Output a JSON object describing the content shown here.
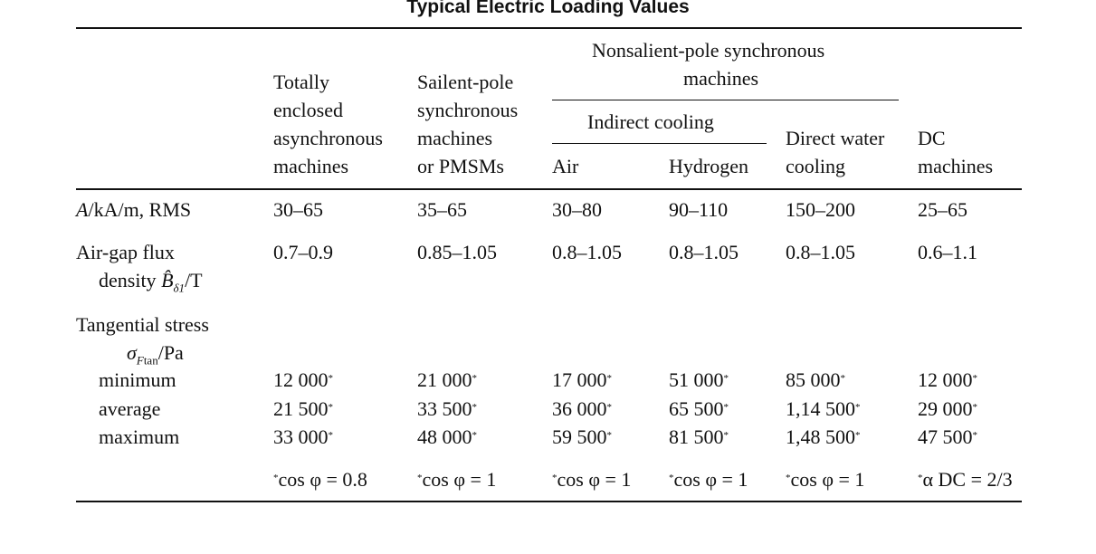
{
  "title": "Typical Electric Loading Values",
  "header": {
    "group": [
      "Nonsalient-pole synchronous",
      "machines"
    ],
    "subgroup": "Indirect cooling",
    "columns": [
      [
        "Totally",
        "enclosed",
        "asynchronous",
        "machines"
      ],
      [
        "Sailent-pole",
        "synchronous",
        "machines",
        "or PMSMs"
      ],
      [
        "Air"
      ],
      [
        "Hydrogen"
      ],
      [
        "Direct water",
        "cooling"
      ],
      [
        "DC",
        "machines"
      ]
    ]
  },
  "rows": {
    "current_loading": {
      "label_var": "A",
      "label_rest": "/kA/m, RMS",
      "values": [
        "30–65",
        "35–65",
        "30–80",
        "90–110",
        "150–200",
        "25–65"
      ]
    },
    "flux_density": {
      "label_line1": "Air-gap flux",
      "label_line2_prefix": "density ",
      "label_var": "B̂",
      "label_sub": "δ1",
      "label_suffix": "/T",
      "values": [
        "0.7–0.9",
        "0.85–1.05",
        "0.8–1.05",
        "0.8–1.05",
        "0.8–1.05",
        "0.6–1.1"
      ]
    },
    "tangential_stress": {
      "label_line1": "Tangential stress",
      "label_var": "σ",
      "label_sub": "F",
      "label_sub2": "tan",
      "label_suffix": "/Pa",
      "marker": "*",
      "minimum": {
        "label": "minimum",
        "values": [
          "12 000",
          "21 000",
          "17 000",
          "51 000",
          "85 000",
          "12 000"
        ]
      },
      "average": {
        "label": "average",
        "values": [
          "21 500",
          "33 500",
          "36 000",
          "65 500",
          "1,14 500",
          "29 000"
        ]
      },
      "maximum": {
        "label": "maximum",
        "values": [
          "33 000",
          "48 000",
          "59 500",
          "81 500",
          "1,48 500",
          "47 500"
        ]
      }
    }
  },
  "footnotes": [
    {
      "marker": "*",
      "expr": "cos φ = 0.8"
    },
    {
      "marker": "*",
      "expr": "cos φ = 1"
    },
    {
      "marker": "*",
      "expr": "cos φ = 1"
    },
    {
      "marker": "*",
      "expr": "cos φ = 1"
    },
    {
      "marker": "*",
      "expr": "cos φ = 1"
    },
    {
      "marker": "*",
      "expr": "α DC = 2/3"
    }
  ]
}
